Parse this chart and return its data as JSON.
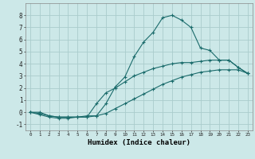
{
  "title": "",
  "xlabel": "Humidex (Indice chaleur)",
  "ylabel": "",
  "background_color": "#cce8e8",
  "grid_color": "#aacccc",
  "line_color": "#1a6b6b",
  "xlim": [
    -0.5,
    23.5
  ],
  "ylim": [
    -1.5,
    9.0
  ],
  "xtick_labels": [
    "0",
    "1",
    "2",
    "3",
    "4",
    "5",
    "6",
    "7",
    "8",
    "9",
    "10",
    "11",
    "12",
    "13",
    "14",
    "15",
    "16",
    "17",
    "18",
    "19",
    "20",
    "21",
    "22",
    "23"
  ],
  "ytick_values": [
    -1,
    0,
    1,
    2,
    3,
    4,
    5,
    6,
    7,
    8
  ],
  "line1_x": [
    0,
    1,
    2,
    3,
    4,
    5,
    6,
    7,
    8,
    9,
    10,
    11,
    12,
    13,
    14,
    15,
    16,
    17,
    18,
    19,
    20,
    21,
    22,
    23
  ],
  "line1_y": [
    0.0,
    -0.2,
    -0.4,
    -0.5,
    -0.5,
    -0.4,
    -0.4,
    -0.3,
    0.7,
    2.1,
    2.9,
    4.6,
    5.8,
    6.6,
    7.8,
    8.0,
    7.6,
    7.0,
    5.3,
    5.1,
    4.3,
    4.3,
    3.7,
    3.2
  ],
  "line2_x": [
    0,
    1,
    2,
    3,
    4,
    5,
    6,
    7,
    8,
    9,
    10,
    11,
    12,
    13,
    14,
    15,
    16,
    17,
    18,
    19,
    20,
    21,
    22,
    23
  ],
  "line2_y": [
    0.0,
    -0.1,
    -0.3,
    -0.4,
    -0.4,
    -0.4,
    -0.4,
    0.7,
    1.6,
    2.0,
    2.5,
    3.0,
    3.3,
    3.6,
    3.8,
    4.0,
    4.1,
    4.1,
    4.2,
    4.3,
    4.3,
    4.3,
    3.7,
    3.2
  ],
  "line3_x": [
    0,
    1,
    2,
    3,
    4,
    5,
    6,
    7,
    8,
    9,
    10,
    11,
    12,
    13,
    14,
    15,
    16,
    17,
    18,
    19,
    20,
    21,
    22,
    23
  ],
  "line3_y": [
    0.0,
    0.0,
    -0.3,
    -0.4,
    -0.4,
    -0.4,
    -0.3,
    -0.3,
    -0.1,
    0.3,
    0.7,
    1.1,
    1.5,
    1.9,
    2.3,
    2.6,
    2.9,
    3.1,
    3.3,
    3.4,
    3.5,
    3.5,
    3.5,
    3.2
  ]
}
